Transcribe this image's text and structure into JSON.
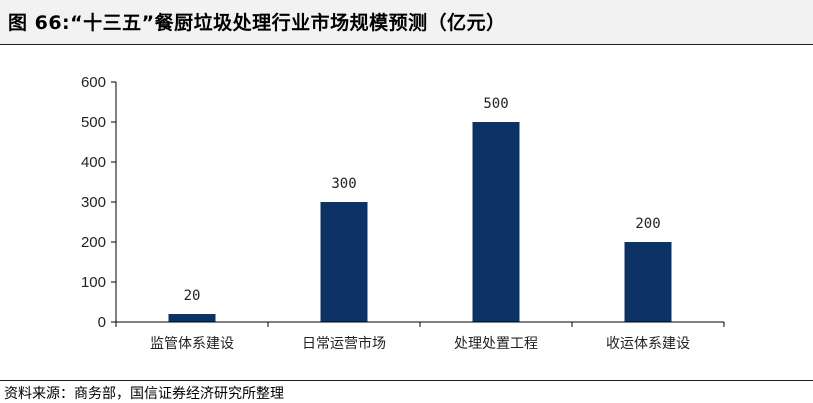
{
  "title": "图 66:“十三五”餐厨垃圾处理行业市场规模预测（亿元）",
  "source": "资料来源：商务部，国信证券经济研究所整理",
  "chart_data": {
    "type": "bar",
    "categories": [
      "监管体系建设",
      "日常运营市场",
      "处理处置工程",
      "收运体系建设"
    ],
    "values": [
      20,
      300,
      500,
      200
    ],
    "data_labels": [
      "20",
      "300",
      "500",
      "200"
    ],
    "yticks": [
      "0",
      "100",
      "200",
      "300",
      "400",
      "500",
      "600"
    ],
    "ylim": [
      0,
      600
    ],
    "bar_color": "#0d3366",
    "grid": false,
    "legend": "none"
  }
}
